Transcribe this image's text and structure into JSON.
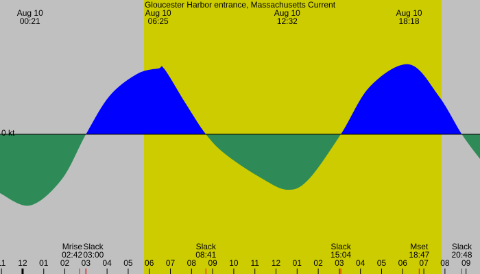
{
  "chart_data": {
    "type": "area",
    "title": "Gloucester Harbor entrance, Massachusetts Current",
    "x": [
      -1.07,
      0.35,
      1.85,
      3.0,
      4.12,
      5.42,
      6.42,
      6.72,
      7.7,
      8.68,
      9.64,
      11.3,
      12.53,
      13.54,
      15.07,
      16.46,
      18.3,
      19.7,
      20.8,
      21.66
    ],
    "values": [
      -0.86,
      -1.04,
      -0.66,
      0,
      0.56,
      0.88,
      0.96,
      0.95,
      0.46,
      0,
      -0.3,
      -0.64,
      -0.81,
      -0.66,
      0,
      0.7,
      1.02,
      0.56,
      0,
      -0.36
    ],
    "flood_color": "#0000ff",
    "ebb_color": "#2e8b57",
    "xlim": [
      -1.07,
      21.66
    ],
    "ylim": [
      -2,
      2
    ],
    "yticks": [
      {
        "value": 0,
        "label": "0 kt"
      }
    ],
    "xticks": [
      {
        "value": -1,
        "label": "11"
      },
      {
        "value": 0,
        "label": "12"
      },
      {
        "value": 1,
        "label": "01"
      },
      {
        "value": 2,
        "label": "02"
      },
      {
        "value": 3,
        "label": "03"
      },
      {
        "value": 4,
        "label": "04"
      },
      {
        "value": 5,
        "label": "05"
      },
      {
        "value": 6,
        "label": "06"
      },
      {
        "value": 7,
        "label": "07"
      },
      {
        "value": 8,
        "label": "08"
      },
      {
        "value": 9,
        "label": "09"
      },
      {
        "value": 10,
        "label": "10"
      },
      {
        "value": 11,
        "label": "11"
      },
      {
        "value": 12,
        "label": "12"
      },
      {
        "value": 13,
        "label": "01"
      },
      {
        "value": 14,
        "label": "02"
      },
      {
        "value": 15,
        "label": "03"
      },
      {
        "value": 16,
        "label": "04"
      },
      {
        "value": 17,
        "label": "05"
      },
      {
        "value": 18,
        "label": "06"
      },
      {
        "value": 19,
        "label": "07"
      },
      {
        "value": 20,
        "label": "08"
      },
      {
        "value": 21,
        "label": "09"
      }
    ],
    "daylight": [
      5.75,
      19.84
    ],
    "max_events": [
      {
        "date": "Aug 10",
        "time": "00:21",
        "x": 0.35
      },
      {
        "date": "Aug 10",
        "time": "06:25",
        "x": 6.42
      },
      {
        "date": "Aug 10",
        "time": "12:32",
        "x": 12.53
      },
      {
        "date": "Aug 10",
        "time": "18:18",
        "x": 18.3
      }
    ],
    "events": [
      {
        "name": "Mrise",
        "time": "02:42",
        "x": 2.7
      },
      {
        "name": "Slack",
        "time": "03:00",
        "x": 3.0
      },
      {
        "name": "Slack",
        "time": "08:41",
        "x": 8.68
      },
      {
        "name": "Slack",
        "time": "15:04",
        "x": 15.07
      },
      {
        "name": "Mset",
        "time": "18:47",
        "x": 18.78
      },
      {
        "name": "Slack",
        "time": "20:48",
        "x": 20.8
      }
    ]
  }
}
